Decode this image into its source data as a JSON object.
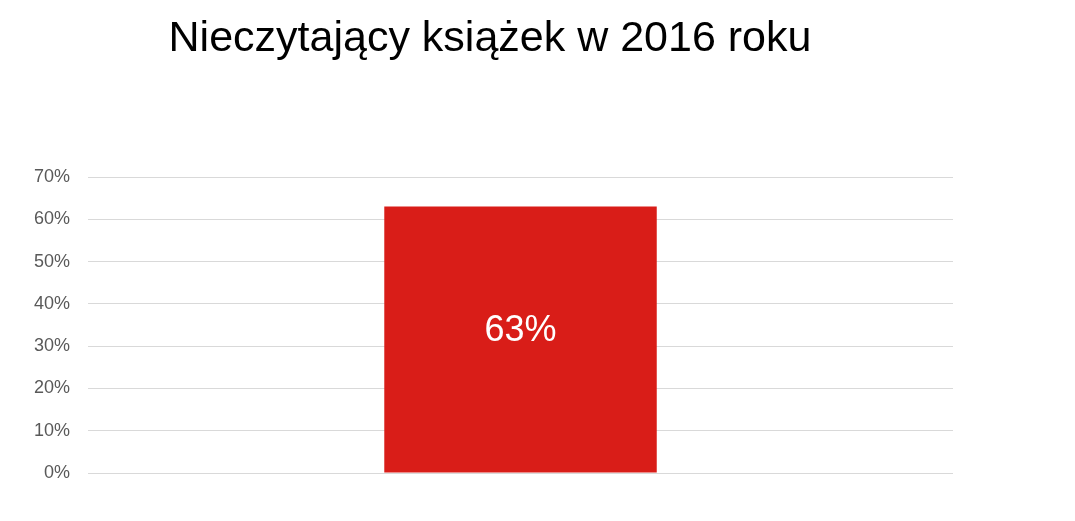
{
  "chart_data": {
    "type": "bar",
    "title": "Nieczytający książek w 2016 roku",
    "categories": [
      null
    ],
    "values": [
      63
    ],
    "color": "#d91d18",
    "value_labels": [
      "63%"
    ],
    "ylim": [
      0,
      70
    ],
    "yticks": [
      {
        "value": 0,
        "label": "0%"
      },
      {
        "value": 10,
        "label": "10%"
      },
      {
        "value": 20,
        "label": "20%"
      },
      {
        "value": 30,
        "label": "30%"
      },
      {
        "value": 40,
        "label": "40%"
      },
      {
        "value": 50,
        "label": "50%"
      },
      {
        "value": 60,
        "label": "60%"
      },
      {
        "value": 70,
        "label": "70%"
      }
    ],
    "grid": "y",
    "tick_labels": "y"
  }
}
